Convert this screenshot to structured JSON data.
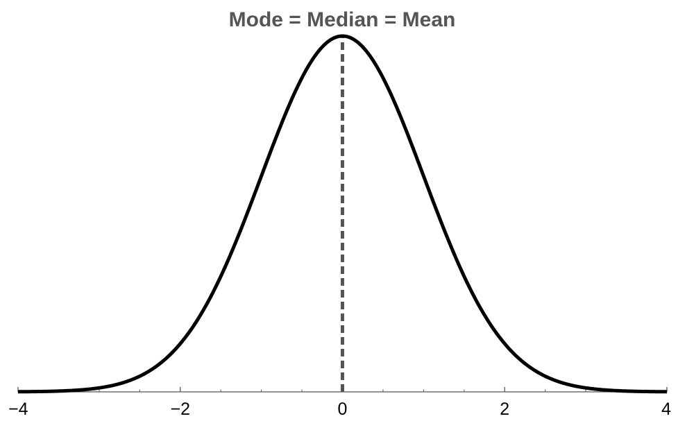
{
  "chart_data": {
    "type": "line",
    "title": "Mode = Median = Mean",
    "xlabel": "",
    "ylabel": "",
    "xlim": [
      -4,
      4
    ],
    "ylim": [
      0,
      0.3989
    ],
    "grid": false,
    "legend": "none",
    "x_ticks_major": [
      -4,
      -2,
      0,
      2,
      4
    ],
    "x_tick_labels": [
      "−4",
      "−2",
      "0",
      "2",
      "4"
    ],
    "x_ticks_minor": [
      -3.5,
      -3,
      -2.5,
      -1.5,
      -1,
      -0.5,
      0.5,
      1,
      1.5,
      2.5,
      3,
      3.5
    ],
    "series": [
      {
        "function": "standard normal density",
        "mean": 0,
        "sd": 1,
        "color": "#000000"
      }
    ],
    "annotations": [
      {
        "kind": "vertical-dashed-line",
        "x": 0,
        "color": "#555555"
      }
    ]
  }
}
